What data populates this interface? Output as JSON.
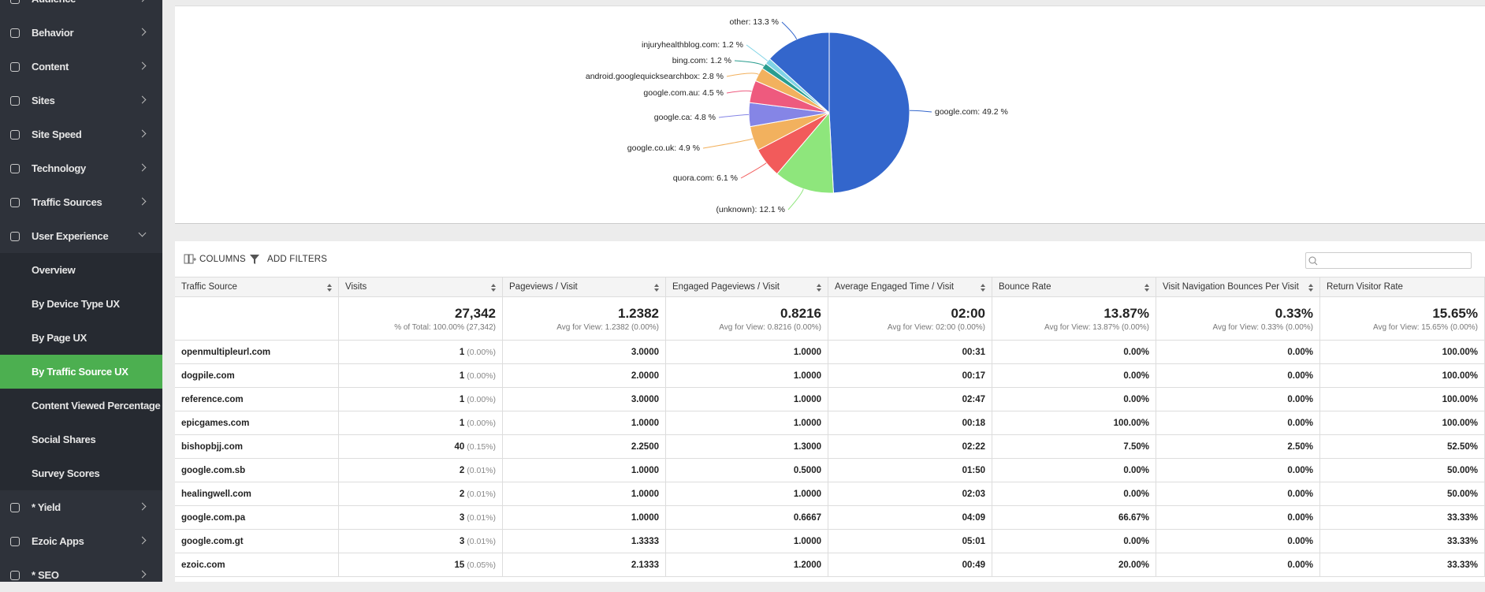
{
  "sidebar": {
    "top": [
      "Audience",
      "Behavior",
      "Content",
      "Sites",
      "Site Speed",
      "Technology",
      "Traffic Sources",
      "User Experience"
    ],
    "sub": [
      "Overview",
      "By Device Type UX",
      "By Page UX",
      "By Traffic Source UX",
      "Content Viewed Percentage",
      "Social Shares",
      "Survey Scores"
    ],
    "active": 3,
    "bottom": [
      "* Yield",
      "Ezoic Apps",
      "* SEO"
    ]
  },
  "pie": {
    "type": "pie",
    "labels": [
      "google.com: 49.2 %",
      "(unknown): 12.1 %",
      "quora.com: 6.1 %",
      "google.co.uk: 4.9 %",
      "google.ca: 4.8 %",
      "google.com.au: 4.5 %",
      "android.googlequicksearchbox: 2.8 %",
      "bing.com: 1.2 %",
      "injuryhealthblog.com: 1.2 %",
      "other: 13.3 %"
    ],
    "values": [
      49.2,
      12.1,
      6.1,
      4.9,
      4.8,
      4.5,
      2.8,
      1.2,
      1.2,
      13.3
    ],
    "colors": [
      "#3366cc",
      "#8ee67c",
      "#f25b5b",
      "#f2b15e",
      "#8585e6",
      "#ee5a7e",
      "#f2b15e",
      "#2a9d8f",
      "#80d4e6",
      "#3366cc"
    ]
  },
  "table": {
    "toolbar": [
      "COLUMNS",
      "ADD FILTERS"
    ],
    "headers": [
      "Traffic Source",
      "Visits",
      "Pageviews / Visit",
      "Engaged Pageviews / Visit",
      "Average Engaged Time / Visit",
      "Bounce Rate",
      "Visit Navigation Bounces Per Visit",
      "Return Visitor Rate"
    ],
    "totals": [
      [
        "27,342",
        "% of Total: 100.00% (27,342)"
      ],
      [
        "1.2382",
        "Avg for View: 1.2382 (0.00%)"
      ],
      [
        "0.8216",
        "Avg for View: 0.8216 (0.00%)"
      ],
      [
        "02:00",
        "Avg for View: 02:00 (0.00%)"
      ],
      [
        "13.87%",
        "Avg for View: 13.87% (0.00%)"
      ],
      [
        "0.33%",
        "Avg for View: 0.33% (0.00%)"
      ],
      [
        "15.65%",
        "Avg for View: 15.65% (0.00%)"
      ]
    ],
    "rows": [
      [
        "openmultipleurl.com",
        "1",
        "(0.00%)",
        "3.0000",
        "1.0000",
        "00:31",
        "0.00%",
        "0.00%",
        "100.00%"
      ],
      [
        "dogpile.com",
        "1",
        "(0.00%)",
        "2.0000",
        "1.0000",
        "00:17",
        "0.00%",
        "0.00%",
        "100.00%"
      ],
      [
        "reference.com",
        "1",
        "(0.00%)",
        "3.0000",
        "1.0000",
        "02:47",
        "0.00%",
        "0.00%",
        "100.00%"
      ],
      [
        "epicgames.com",
        "1",
        "(0.00%)",
        "1.0000",
        "1.0000",
        "00:18",
        "100.00%",
        "0.00%",
        "100.00%"
      ],
      [
        "bishopbjj.com",
        "40",
        "(0.15%)",
        "2.2500",
        "1.3000",
        "02:22",
        "7.50%",
        "2.50%",
        "52.50%"
      ],
      [
        "google.com.sb",
        "2",
        "(0.01%)",
        "1.0000",
        "0.5000",
        "01:50",
        "0.00%",
        "0.00%",
        "50.00%"
      ],
      [
        "healingwell.com",
        "2",
        "(0.01%)",
        "1.0000",
        "1.0000",
        "02:03",
        "0.00%",
        "0.00%",
        "50.00%"
      ],
      [
        "google.com.pa",
        "3",
        "(0.01%)",
        "1.0000",
        "0.6667",
        "04:09",
        "66.67%",
        "0.00%",
        "33.33%"
      ],
      [
        "google.com.gt",
        "3",
        "(0.01%)",
        "1.3333",
        "1.0000",
        "05:01",
        "0.00%",
        "0.00%",
        "33.33%"
      ],
      [
        "ezoic.com",
        "15",
        "(0.05%)",
        "2.1333",
        "1.2000",
        "00:49",
        "20.00%",
        "0.00%",
        "33.33%"
      ]
    ]
  }
}
